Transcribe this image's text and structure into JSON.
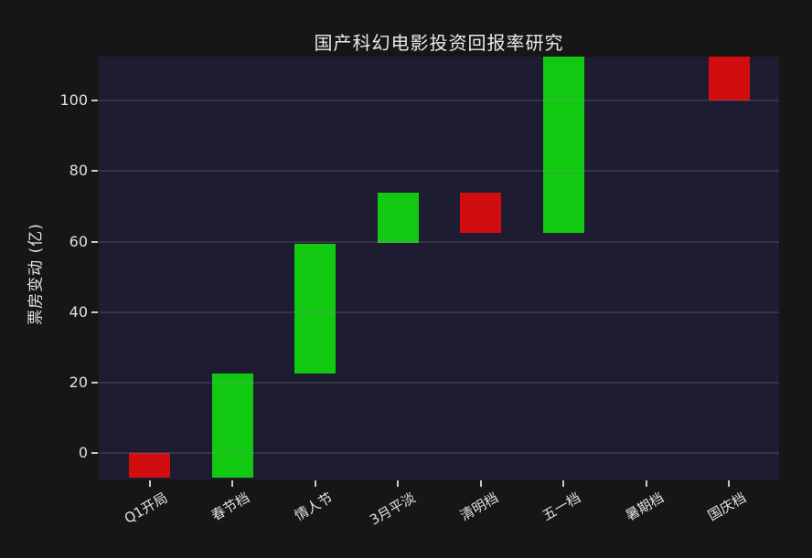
{
  "figure": {
    "background": "#161616",
    "plot_background": "#1e1c30"
  },
  "chart_data": {
    "type": "bar",
    "variant": "waterfall",
    "title": "国产科幻电影投资回报率研究",
    "xlabel": "",
    "ylabel": "票房变动 (亿)",
    "categories": [
      "Q1开局",
      "春节档",
      "情人节",
      "3月平淡",
      "清明档",
      "五一档",
      "暑期档",
      "国庆档"
    ],
    "changes": [
      -7,
      29.5,
      37,
      14.5,
      -11.5,
      50,
      0,
      -12.5
    ],
    "cumulative_start": [
      0,
      -7,
      22.5,
      59.5,
      74,
      62.5,
      112.5,
      112.5
    ],
    "cumulative_end": [
      -7,
      22.5,
      59.5,
      74,
      62.5,
      112.5,
      112.5,
      100
    ],
    "yticks": [
      0,
      20,
      40,
      60,
      80,
      100
    ],
    "ylim": [
      -7.5,
      112.5
    ],
    "grid": true,
    "legend": false,
    "colors": {
      "increase": "#12c912",
      "decrease": "#d10d10",
      "gridline_overlay": "rgba(135,135,165,0.22)",
      "tick": "#c9c9c9",
      "text": "#e2e2e2"
    }
  }
}
